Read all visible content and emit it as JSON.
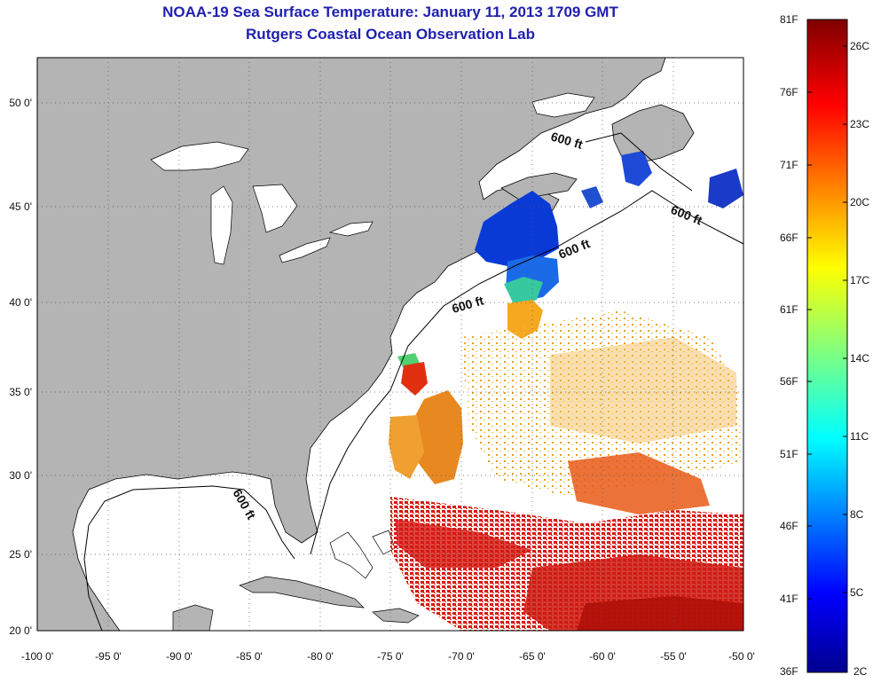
{
  "title_line1": "NOAA-19 Sea Surface Temperature:  January 11, 2013 1709 GMT",
  "title_line2": "Rutgers Coastal Ocean Observation Lab",
  "map": {
    "lon_range": [
      -100,
      -50
    ],
    "lat_range": [
      20,
      52.5
    ],
    "lon_ticks": [
      "-100 0'",
      "-95 0'",
      "-90 0'",
      "-85 0'",
      "-80 0'",
      "-75 0'",
      "-70 0'",
      "-65 0'",
      "-60 0'",
      "-55 0'",
      "-50 0'"
    ],
    "lat_ticks": [
      "50 0'",
      "45 0'",
      "40 0'",
      "35 0'",
      "30 0'",
      "25 0'",
      "20 0'"
    ],
    "grid": "dotted",
    "land_color": "#b4b4b4",
    "isobath_labels": [
      "600 ft",
      "600 ft",
      "600 ft",
      "600 ft",
      "600 ft"
    ]
  },
  "colorbar": {
    "fahrenheit_labels": [
      "81F",
      "76F",
      "71F",
      "66F",
      "61F",
      "56F",
      "51F",
      "46F",
      "41F",
      "36F"
    ],
    "celsius_labels": [
      "26C",
      "23C",
      "20C",
      "17C",
      "14C",
      "11C",
      "8C",
      "5C",
      "2C"
    ],
    "range_c": [
      2,
      27.2
    ],
    "colormap": "jet"
  }
}
